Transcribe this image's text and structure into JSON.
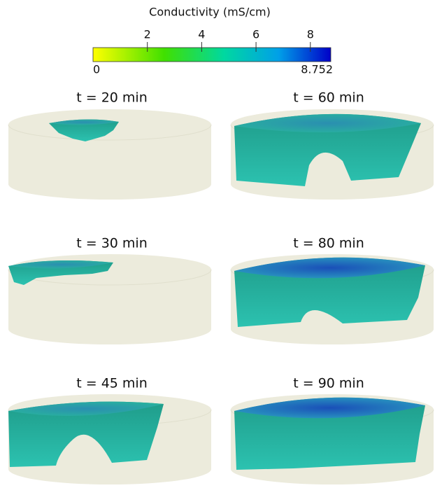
{
  "colorbar": {
    "title": "Conductivity (mS/cm)",
    "ticks": [
      2,
      4,
      6,
      8
    ],
    "min": 0,
    "max": 8.752
  },
  "panels": [
    {
      "label": "t = 20 min"
    },
    {
      "label": "t = 60 min"
    },
    {
      "label": "t = 30 min"
    },
    {
      "label": "t = 80 min"
    },
    {
      "label": "t = 45 min"
    },
    {
      "label": "t = 90 min"
    }
  ]
}
